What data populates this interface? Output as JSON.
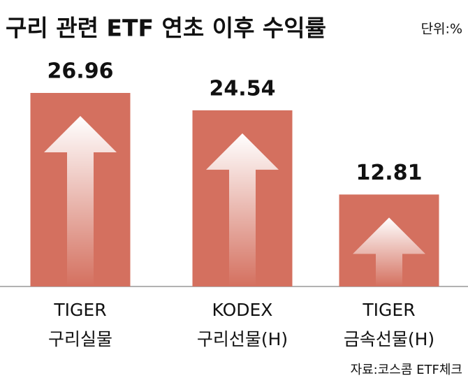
{
  "chart_data": {
    "type": "bar",
    "title": "구리 관련 ETF 연초 이후 수익률",
    "unit": "단위:%",
    "categories": [
      [
        "TIGER",
        "구리실물"
      ],
      [
        "KODEX",
        "구리선물(H)"
      ],
      [
        "TIGER",
        "금속선물(H)"
      ]
    ],
    "values": [
      26.96,
      24.54,
      12.81
    ],
    "color": "#d4705f",
    "source": "자료:코스콤 ETF체크"
  }
}
